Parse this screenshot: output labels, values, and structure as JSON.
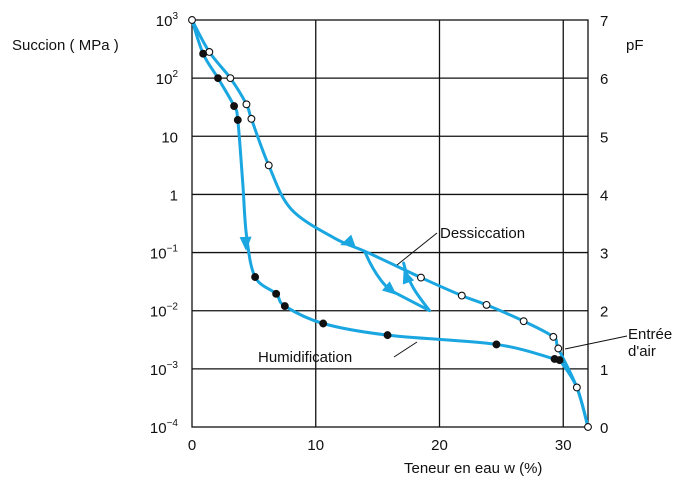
{
  "chart_data": {
    "type": "line",
    "title": "",
    "xlabel": "Teneur en eau w (%)",
    "ylabel_left": "Succion ( MPa )",
    "ylabel_right": "pF",
    "xlim": [
      0,
      32
    ],
    "ylim_pF": [
      0,
      7
    ],
    "y_scale": "log",
    "ylim_MPa": [
      0.0001,
      1000
    ],
    "grid": true,
    "x_ticks": [
      "0",
      "10",
      "20",
      "30"
    ],
    "y_ticks_left": [
      {
        "base": "10",
        "exp": "3"
      },
      {
        "base": "10",
        "exp": "2"
      },
      {
        "base": "10",
        "exp": ""
      },
      {
        "base": "1",
        "exp": ""
      },
      {
        "base": "10",
        "exp": "−1"
      },
      {
        "base": "10",
        "exp": "−2"
      },
      {
        "base": "10",
        "exp": "−3"
      },
      {
        "base": "10",
        "exp": "−4"
      }
    ],
    "y_ticks_right": [
      "7",
      "6",
      "5",
      "4",
      "3",
      "2",
      "1",
      "0"
    ],
    "annotations": {
      "dessiccation": "Dessiccation",
      "humidification": "Humidification",
      "entree_line1": "Entrée",
      "entree_line2": "d'air"
    },
    "series": [
      {
        "name": "Dessiccation",
        "marker": "open-circle",
        "color": "#1aa6e0",
        "x": [
          32,
          31.1,
          29.6,
          29.2,
          26.8,
          23.8,
          21.8,
          18.5,
          6.2,
          4.8,
          4.4,
          3.1,
          1.4,
          0
        ],
        "y_pF": [
          0,
          0.68,
          1.35,
          1.55,
          1.82,
          2.1,
          2.26,
          2.57,
          4.5,
          5.3,
          5.55,
          6.0,
          6.45,
          7.0
        ]
      },
      {
        "name": "Humidification",
        "marker": "filled-circle",
        "color": "#1aa6e0",
        "x": [
          0.9,
          2.1,
          3.4,
          3.7,
          5.1,
          6.8,
          7.5,
          10.6,
          15.8,
          24.6,
          29.3,
          29.7
        ],
        "y_pF": [
          6.42,
          6.0,
          5.52,
          5.28,
          2.58,
          2.29,
          2.08,
          1.78,
          1.58,
          1.42,
          1.17,
          1.15
        ]
      }
    ]
  }
}
